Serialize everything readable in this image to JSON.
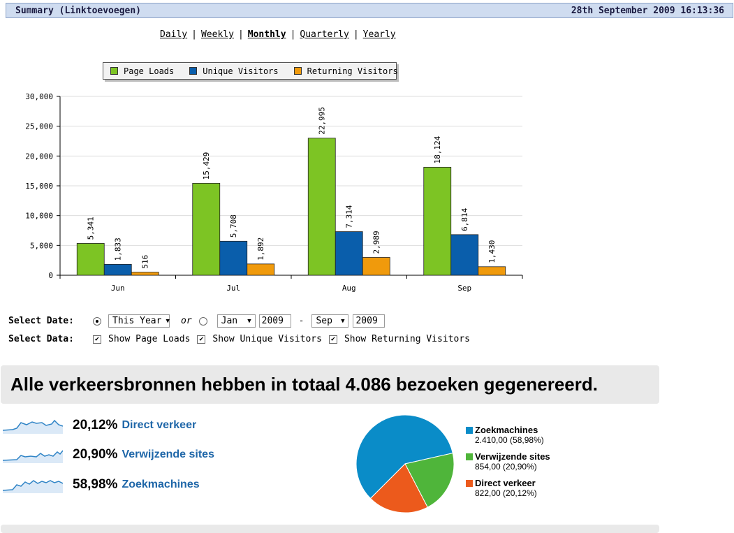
{
  "header": {
    "title": "Summary (Linktoevoegen)",
    "timestamp": "28th September 2009 16:13:36"
  },
  "periods": [
    {
      "label": "Daily",
      "active": false
    },
    {
      "label": "Weekly",
      "active": false
    },
    {
      "label": "Monthly",
      "active": true
    },
    {
      "label": "Quarterly",
      "active": false
    },
    {
      "label": "Yearly",
      "active": false
    }
  ],
  "chart_data": {
    "type": "bar",
    "categories": [
      "Jun",
      "Jul",
      "Aug",
      "Sep"
    ],
    "series": [
      {
        "name": "Page Loads",
        "color": "#7dc424",
        "values": [
          5341,
          15429,
          22995,
          18124
        ],
        "labels": [
          "5,341",
          "15,429",
          "22,995",
          "18,124"
        ]
      },
      {
        "name": "Unique Visitors",
        "color": "#0a5eab",
        "values": [
          1833,
          5708,
          7314,
          6814
        ],
        "labels": [
          "1,833",
          "5,708",
          "7,314",
          "6,814"
        ]
      },
      {
        "name": "Returning Visitors",
        "color": "#f09a0c",
        "values": [
          516,
          1892,
          2989,
          1430
        ],
        "labels": [
          "516",
          "1,892",
          "2,989",
          "1,430"
        ]
      }
    ],
    "ylim": [
      0,
      30000
    ],
    "yticks": [
      0,
      5000,
      10000,
      15000,
      20000,
      25000,
      30000
    ],
    "ytick_labels": [
      "0",
      "5,000",
      "10,000",
      "15,000",
      "20,000",
      "25,000",
      "30,000"
    ],
    "grid": true,
    "legend": "top"
  },
  "form": {
    "select_date_label": "Select Date:",
    "select_data_label": "Select Data:",
    "this_year_option": "This Year",
    "or_text": "or",
    "from_month": "Jan",
    "from_year": "2009",
    "dash": "-",
    "to_month": "Sep",
    "to_year": "2009",
    "radio_this_year_checked": true,
    "radio_range_checked": false,
    "show_page_loads": "Show Page Loads",
    "show_unique": "Show Unique Visitors",
    "show_returning": "Show Returning Visitors"
  },
  "traffic": {
    "headline": "Alle verkeersbronnen hebben in totaal 4.086 bezoeken gegenereerd.",
    "sources": [
      {
        "pct": "20,12%",
        "name": "Direct verkeer"
      },
      {
        "pct": "20,90%",
        "name": "Verwijzende sites"
      },
      {
        "pct": "58,98%",
        "name": "Zoekmachines"
      }
    ],
    "pie": [
      {
        "name": "Zoekmachines",
        "value_text": "2.410,00 (58,98%)",
        "value": 2410,
        "color": "#0a8cc8"
      },
      {
        "name": "Verwijzende sites",
        "value_text": "854,00 (20,90%)",
        "value": 854,
        "color": "#4fb53a"
      },
      {
        "name": "Direct verkeer",
        "value_text": "822,00 (20,12%)",
        "value": 822,
        "color": "#ec5a1c"
      }
    ]
  }
}
